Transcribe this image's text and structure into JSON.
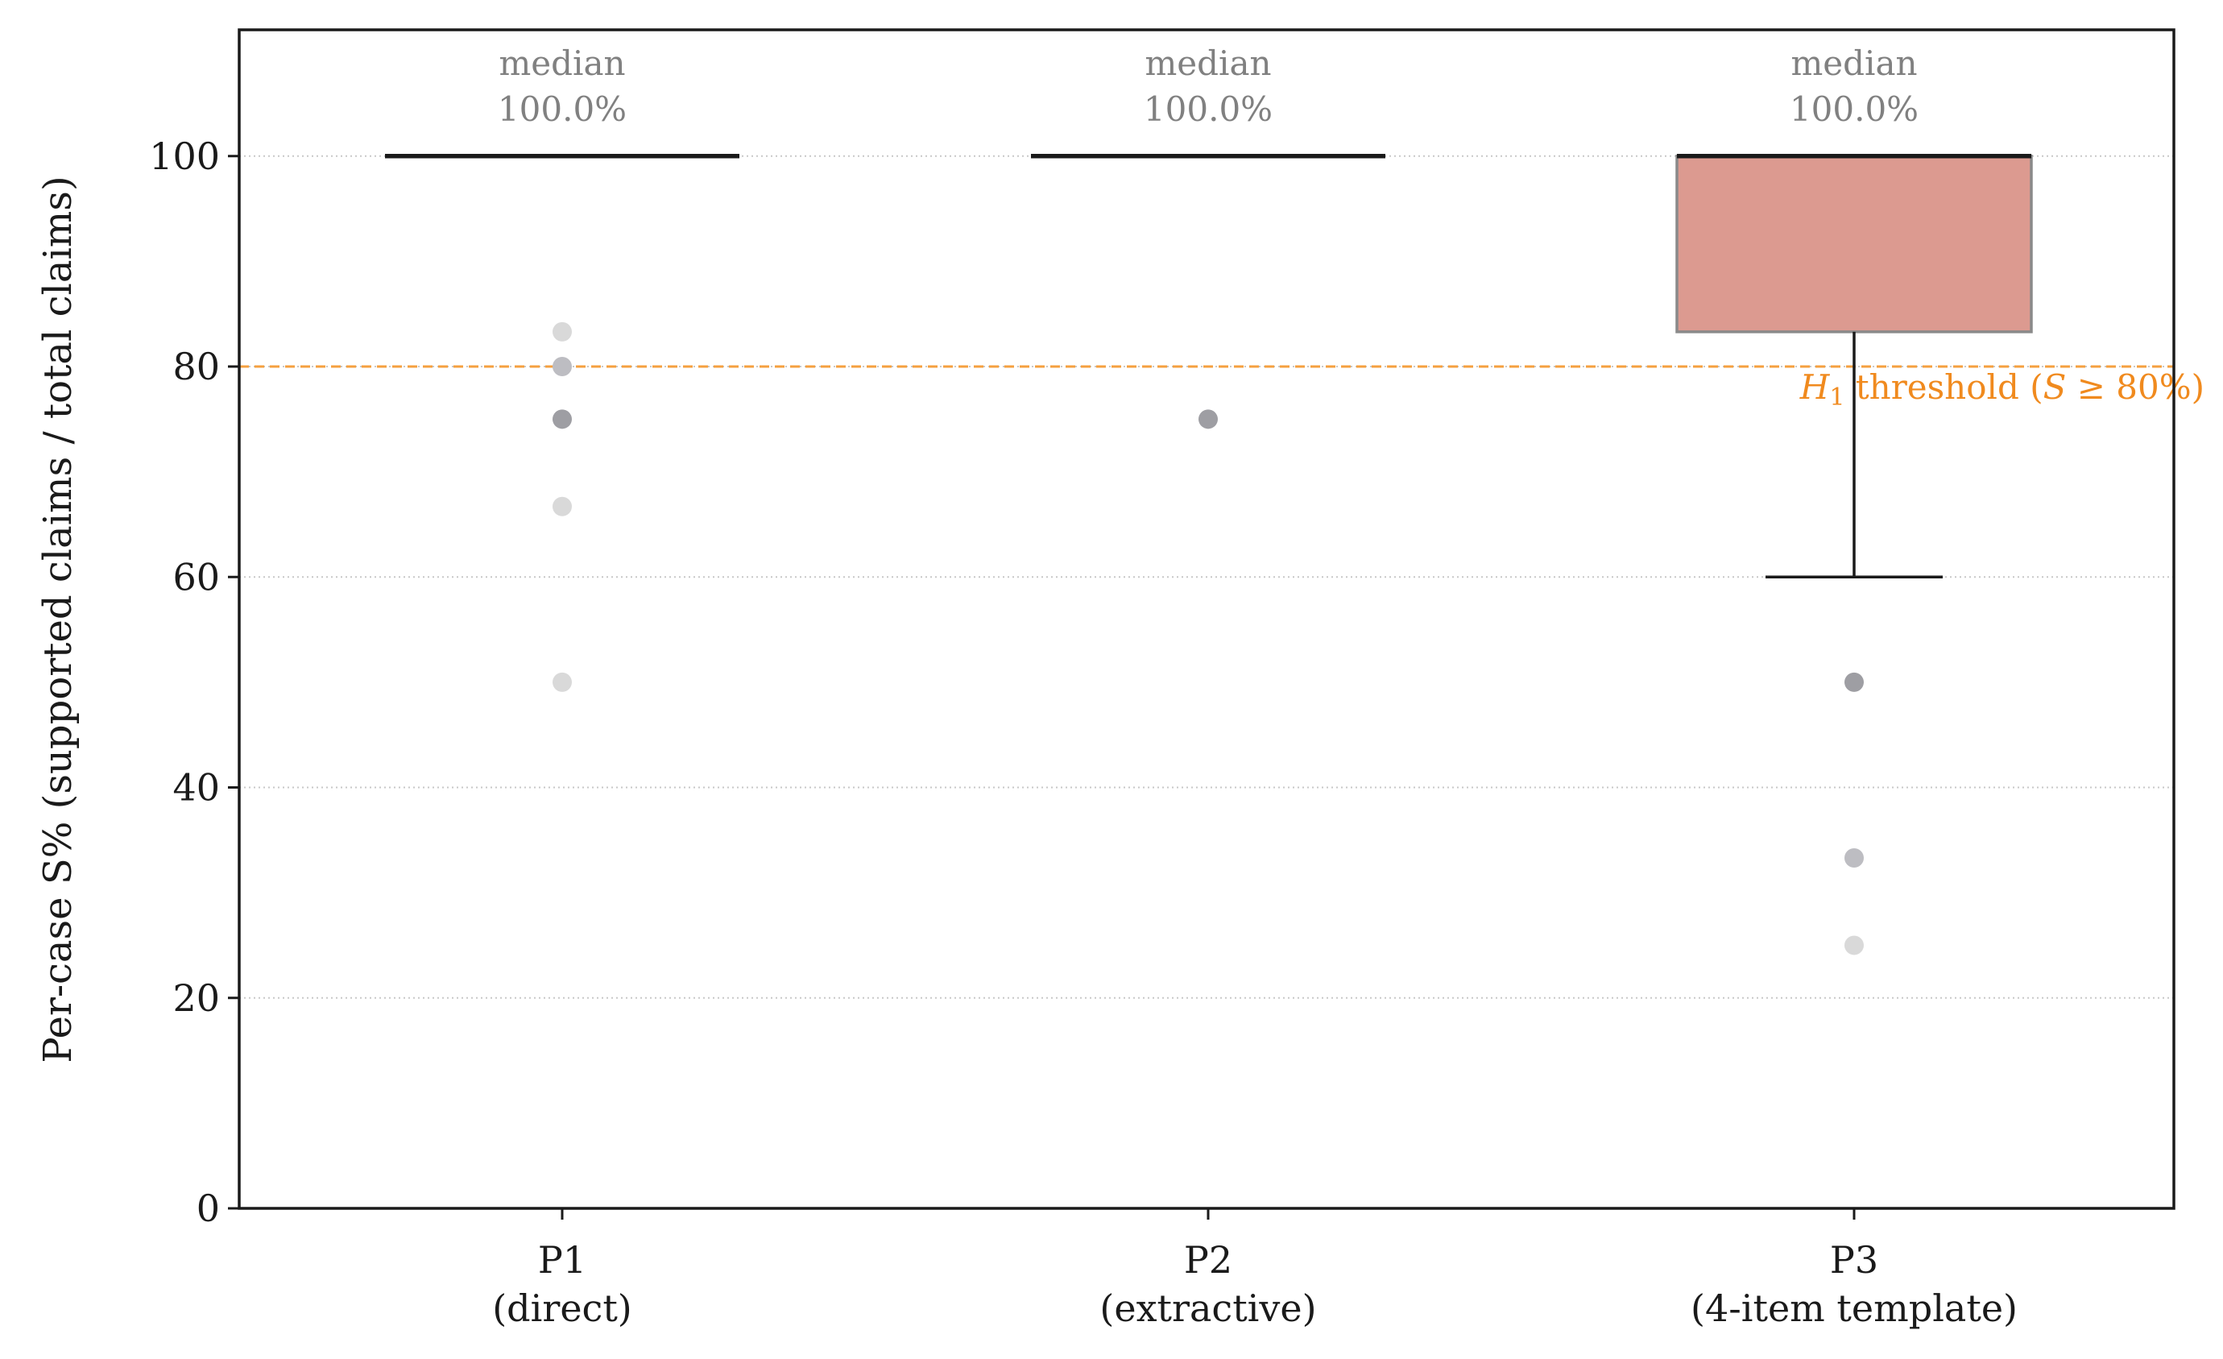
{
  "chart_data": {
    "type": "box",
    "ylabel": "Per-case S% (supported claims / total claims)",
    "ylim": [
      0,
      112
    ],
    "yticks": [
      0,
      20,
      40,
      60,
      80,
      100
    ],
    "grid": "y-dotted",
    "categories": [
      {
        "label_line1": "P1",
        "label_line2": "(direct)"
      },
      {
        "label_line1": "P2",
        "label_line2": "(extractive)"
      },
      {
        "label_line1": "P3",
        "label_line2": "(4-item template)"
      }
    ],
    "boxes": [
      {
        "q1": 100,
        "median": 100,
        "q3": 100,
        "whisker_low": 100,
        "whisker_high": 100,
        "median_label_line1": "median",
        "median_label_line2": "100.0%",
        "outliers": [
          83.3,
          80,
          75,
          66.7,
          50
        ],
        "outlier_colors": [
          "#d9d9d9",
          "#bdbdc2",
          "#9e9ea3",
          "#d9d9d9",
          "#d9d9d9"
        ]
      },
      {
        "q1": 100,
        "median": 100,
        "q3": 100,
        "whisker_low": 100,
        "whisker_high": 100,
        "median_label_line1": "median",
        "median_label_line2": "100.0%",
        "outliers": [
          75
        ],
        "outlier_colors": [
          "#9e9ea3"
        ]
      },
      {
        "q1": 83.3,
        "median": 100,
        "q3": 100,
        "whisker_low": 60,
        "whisker_high": 100,
        "median_label_line1": "median",
        "median_label_line2": "100.0%",
        "outliers": [
          50,
          33.3,
          25
        ],
        "outlier_colors": [
          "#9e9ea3",
          "#bdbdc2",
          "#d9d9d9"
        ]
      }
    ],
    "threshold": {
      "value": 80,
      "label_prefix": "H",
      "label_sub": "1",
      "label_middle": " threshold (",
      "label_italic": "S",
      "label_suffix": " ≥ 80%)"
    },
    "colors": {
      "box_fill": "#dc9a90",
      "box_edge": "#8a8a8a",
      "line": "#1a1a1a",
      "threshold": "#f5a040",
      "threshold_text": "#f08a1e",
      "grid": "#c8c8c8",
      "median_text": "#808080"
    }
  }
}
